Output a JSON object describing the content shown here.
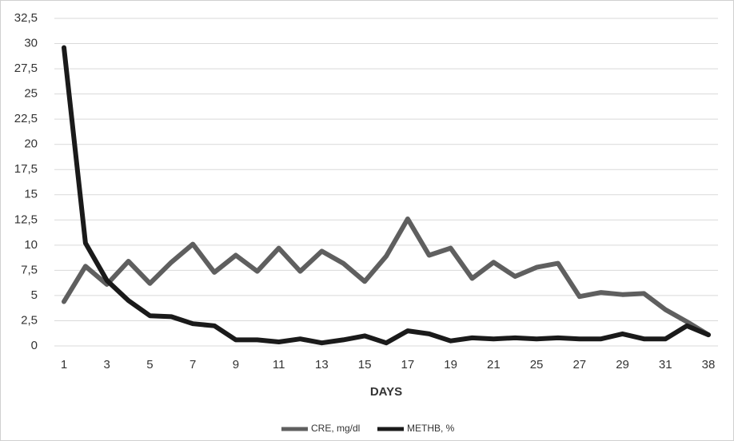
{
  "chart_data": {
    "type": "line",
    "x_label": "DAYS",
    "categories": [
      "1",
      null,
      "3",
      null,
      "5",
      null,
      "7",
      null,
      "9",
      null,
      "11",
      null,
      "13",
      null,
      "15",
      null,
      "17",
      null,
      "19",
      null,
      "21",
      null,
      "25",
      null,
      "27",
      null,
      "29",
      null,
      "31",
      null,
      "38"
    ],
    "series": [
      {
        "name": "CRE, mg/dl",
        "color": "#5f5f5f",
        "values": [
          4.4,
          7.9,
          6.1,
          8.4,
          6.2,
          8.3,
          10.1,
          7.3,
          9,
          7.4,
          9.7,
          7.4,
          9.4,
          8.2,
          6.4,
          8.9,
          12.6,
          9,
          9.7,
          6.7,
          8.3,
          6.9,
          7.8,
          8.2,
          4.9,
          5.3,
          5.1,
          5.2,
          3.6,
          2.4,
          1.1
        ]
      },
      {
        "name": "METHB, %",
        "color": "#1a1a1a",
        "values": [
          29.6,
          10.2,
          6.5,
          4.5,
          3.0,
          2.9,
          2.2,
          2.0,
          0.6,
          0.6,
          0.4,
          0.7,
          0.3,
          0.6,
          1.0,
          0.3,
          1.5,
          1.2,
          0.5,
          0.8,
          0.7,
          0.8,
          0.7,
          0.8,
          0.7,
          0.7,
          1.2,
          0.7,
          0.7,
          2.0,
          1.1
        ]
      }
    ],
    "ylim": [
      0,
      32.5
    ],
    "yticks": [
      0,
      {
        "value": 2.5,
        "label": "2,5"
      },
      5,
      {
        "value": 7.5,
        "label": "7,5"
      },
      10,
      {
        "value": 12.5,
        "label": "12,5"
      },
      15,
      {
        "value": 17.5,
        "label": "17,5"
      },
      20,
      {
        "value": 22.5,
        "label": "22,5"
      },
      25,
      {
        "value": 27.5,
        "label": "27,5"
      },
      30,
      {
        "value": 32.5,
        "label": "32,5"
      }
    ],
    "grid": true,
    "legend": "bottom"
  }
}
